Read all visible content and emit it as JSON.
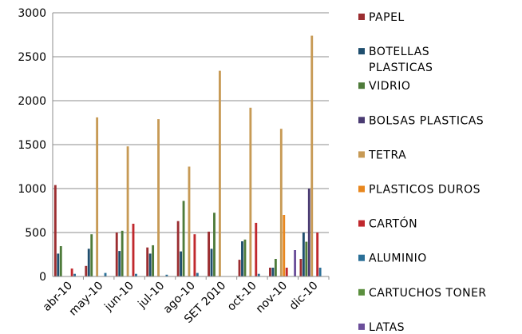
{
  "chart_data": {
    "type": "bar",
    "categories": [
      "abr-10",
      "may-10",
      "jun-10",
      "jul-10",
      "ago-10",
      "SET 2010",
      "oct-10",
      "nov-10",
      "dic-10"
    ],
    "ylim": [
      0,
      3000
    ],
    "yticks": [
      0,
      500,
      1000,
      1500,
      2000,
      2500,
      3000
    ],
    "grid": true,
    "legend_position": "right",
    "series": [
      {
        "name": "PAPEL",
        "color": "#9B2D30",
        "values": [
          1040,
          120,
          500,
          330,
          630,
          510,
          190,
          100,
          200
        ]
      },
      {
        "name": "BOTELLAS PLASTICAS",
        "color": "#1F4E6E",
        "values": [
          260,
          315,
          290,
          260,
          285,
          315,
          400,
          100,
          500
        ]
      },
      {
        "name": "VIDRIO",
        "color": "#4E7B3A",
        "values": [
          345,
          480,
          520,
          355,
          860,
          725,
          420,
          200,
          395
        ]
      },
      {
        "name": "BOLSAS PLASTICAS",
        "color": "#4A3B72",
        "values": [
          0,
          0,
          0,
          0,
          0,
          0,
          0,
          0,
          1000
        ]
      },
      {
        "name": "TETRA",
        "color": "#C79A55",
        "values": [
          0,
          1810,
          1480,
          1790,
          1250,
          2340,
          1920,
          1680,
          2740
        ]
      },
      {
        "name": "PLASTICOS DUROS",
        "color": "#E8871E",
        "values": [
          0,
          0,
          0,
          0,
          0,
          0,
          0,
          700,
          0
        ]
      },
      {
        "name": "CARTÓN",
        "color": "#C0282D",
        "values": [
          90,
          0,
          600,
          0,
          480,
          0,
          610,
          100,
          500
        ]
      },
      {
        "name": "ALUMINIO",
        "color": "#2A6F97",
        "values": [
          30,
          40,
          30,
          20,
          40,
          0,
          30,
          0,
          100
        ]
      },
      {
        "name": "CARTUCHOS TONER",
        "color": "#5B8F3E",
        "values": [
          0,
          0,
          0,
          0,
          0,
          0,
          0,
          0,
          0
        ]
      },
      {
        "name": "LATAS",
        "color": "#6B4E9A",
        "values": [
          0,
          0,
          0,
          0,
          0,
          0,
          0,
          300,
          0
        ]
      }
    ]
  }
}
